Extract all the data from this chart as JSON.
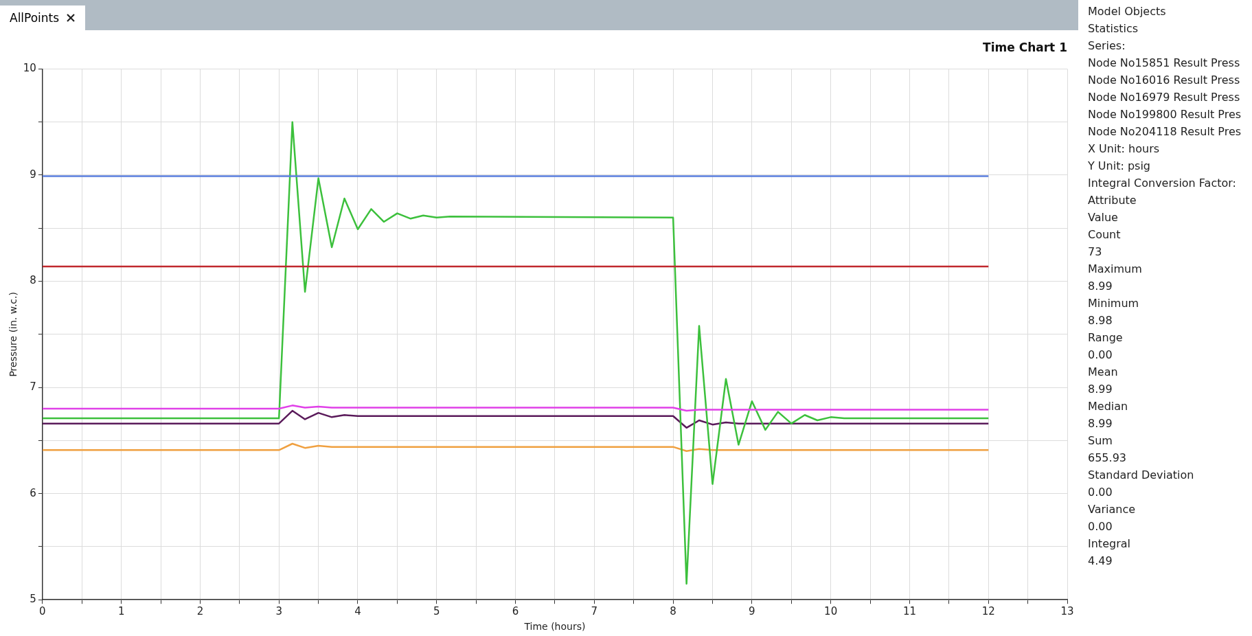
{
  "chart_data": [
    {
      "type": "line",
      "title": "Time Chart 1",
      "xlabel": "Time (hours)",
      "ylabel": "Pressure (in. w.c.)",
      "annotations": [
        "AllPoints"
      ],
      "xlim": [
        0,
        13
      ],
      "xticks": [
        0,
        {
          "value": 0.5,
          "label": null
        },
        1,
        {
          "value": 1.5,
          "label": null
        },
        2,
        {
          "value": 2.5,
          "label": null
        },
        3,
        {
          "value": 3.5,
          "label": null
        },
        4,
        {
          "value": 4.5,
          "label": null
        },
        5,
        {
          "value": 5.5,
          "label": null
        },
        6,
        {
          "value": 6.5,
          "label": null
        },
        7,
        {
          "value": 7.5,
          "label": null
        },
        8,
        {
          "value": 8.5,
          "label": null
        },
        9,
        {
          "value": 9.5,
          "label": null
        },
        10,
        {
          "value": 10.5,
          "label": null
        },
        11,
        {
          "value": 11.5,
          "label": null
        },
        12,
        {
          "value": 12.5,
          "label": null
        },
        13
      ],
      "ylim": [
        5,
        10
      ],
      "yticks": [
        5,
        {
          "value": 5.5,
          "label": null
        },
        6,
        {
          "value": 6.5,
          "label": null
        },
        7,
        {
          "value": 7.5,
          "label": null
        },
        8,
        {
          "value": 8.5,
          "label": null
        },
        9,
        {
          "value": 9.5,
          "label": null
        },
        10
      ],
      "grid": true,
      "legend": false,
      "marker": "none",
      "line_style": "solid",
      "series": [
        {
          "color": "#5b7fde",
          "x": [
            0,
            12
          ],
          "values": [
            8.99,
            8.99
          ]
        },
        {
          "color": "#c0282d",
          "x": [
            0,
            12
          ],
          "values": [
            8.14,
            8.14
          ]
        },
        {
          "color": "#e040e8",
          "x": [
            0,
            3,
            3.17,
            3.33,
            3.5,
            3.67,
            8,
            8.17,
            8.33,
            12
          ],
          "values": [
            6.8,
            6.8,
            6.83,
            6.81,
            6.82,
            6.81,
            6.81,
            6.78,
            6.79,
            6.79
          ]
        },
        {
          "color": "#3cc03c",
          "x": [
            0,
            3,
            3.17,
            3.33,
            3.5,
            3.67,
            3.83,
            4,
            4.17,
            4.33,
            4.5,
            4.67,
            4.83,
            5,
            5.17,
            8,
            8.17,
            8.33,
            8.5,
            8.67,
            8.83,
            9,
            9.17,
            9.33,
            9.5,
            9.67,
            9.83,
            10,
            10.17,
            12
          ],
          "values": [
            6.71,
            6.71,
            9.5,
            7.9,
            8.97,
            8.32,
            8.78,
            8.49,
            8.68,
            8.56,
            8.64,
            8.59,
            8.62,
            8.6,
            8.61,
            8.6,
            5.15,
            7.58,
            6.09,
            7.08,
            6.46,
            6.87,
            6.6,
            6.77,
            6.66,
            6.74,
            6.69,
            6.72,
            6.71,
            6.71
          ]
        },
        {
          "color": "#5a1a5a",
          "x": [
            0,
            3,
            3.17,
            3.33,
            3.5,
            3.67,
            3.83,
            4,
            8,
            8.17,
            8.33,
            8.5,
            8.67,
            8.83,
            12
          ],
          "values": [
            6.66,
            6.66,
            6.78,
            6.7,
            6.76,
            6.72,
            6.74,
            6.73,
            6.73,
            6.62,
            6.69,
            6.65,
            6.67,
            6.66,
            6.66
          ]
        },
        {
          "color": "#f0a040",
          "x": [
            0,
            3,
            3.17,
            3.33,
            3.5,
            3.67,
            8,
            8.17,
            8.33,
            8.5,
            12
          ],
          "values": [
            6.41,
            6.41,
            6.47,
            6.43,
            6.45,
            6.44,
            6.44,
            6.4,
            6.42,
            6.41,
            6.41
          ]
        }
      ]
    },
    {
      "type": "other",
      "annotations": [
        "Model Objects",
        "Statistics",
        "Series:",
        "Node No15851 Result Press",
        "Node No16016 Result Press",
        "Node No16979 Result Press",
        "Node No199800 Result Pres",
        "Node No204118 Result Pres",
        "X Unit: hours",
        "Y Unit: psig",
        "Integral Conversion Factor:",
        "Attribute",
        "Value",
        "Count",
        "73",
        "Maximum",
        "8.99",
        "Minimum",
        "8.98",
        "Range",
        "0.00",
        "Mean",
        "8.99",
        "Median",
        "8.99",
        "Sum",
        "655.93",
        "Standard Deviation",
        "0.00",
        "Variance",
        "0.00",
        "Integral",
        "4.49"
      ]
    }
  ]
}
